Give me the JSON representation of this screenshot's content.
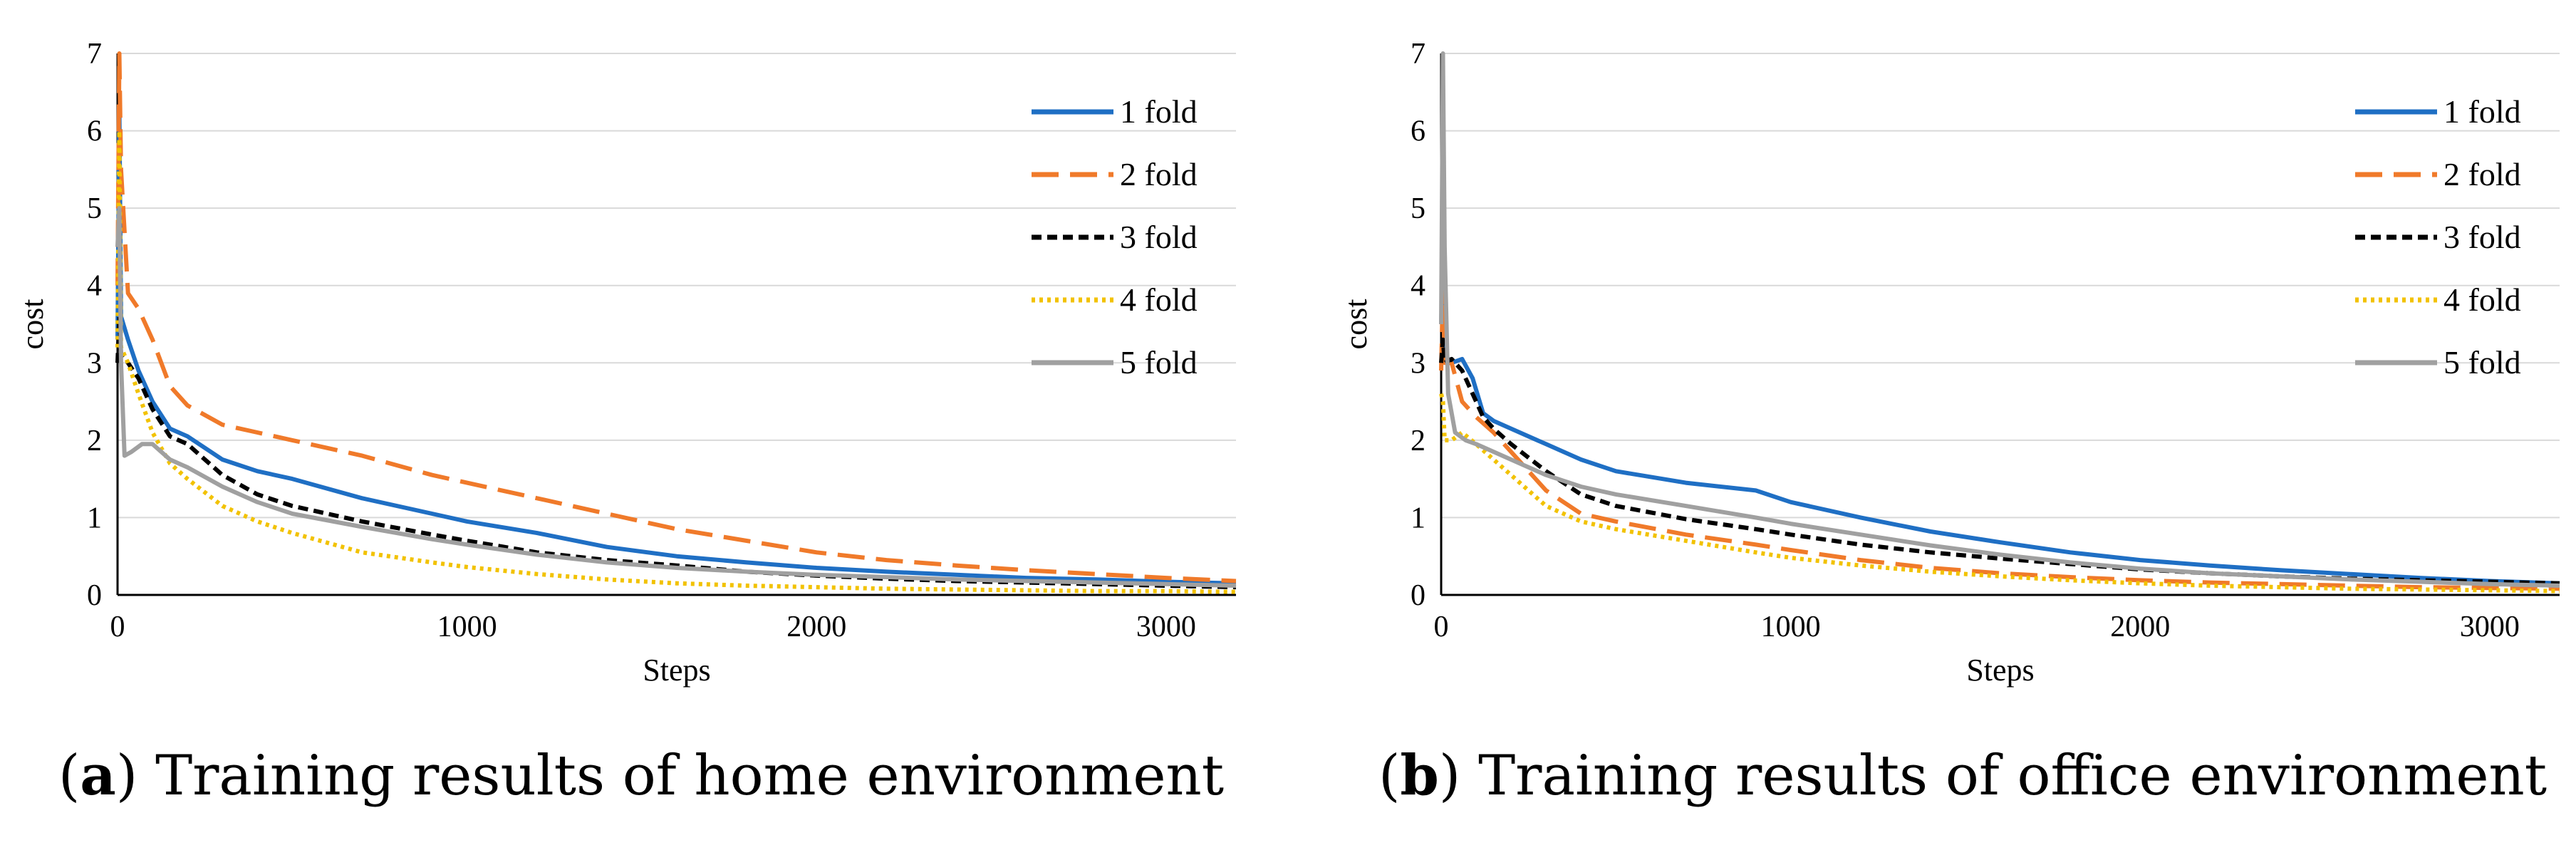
{
  "chart_data": [
    {
      "type": "line",
      "caption_label": "a",
      "caption_text": "Training results of home environment",
      "xlabel": "Steps",
      "ylabel": "cost",
      "xlim": [
        0,
        3200
      ],
      "ylim": [
        0,
        7
      ],
      "xticks": [
        0,
        1000,
        2000,
        3000
      ],
      "yticks": [
        0,
        1,
        2,
        3,
        4,
        5,
        6,
        7
      ],
      "legend_position": "top-right",
      "series": [
        {
          "name": "1 fold",
          "color": "#1f6fc4",
          "style": "solid",
          "x": [
            0,
            5,
            10,
            30,
            60,
            100,
            150,
            200,
            300,
            400,
            500,
            700,
            900,
            1000,
            1200,
            1400,
            1600,
            1800,
            2000,
            2200,
            2400,
            2600,
            2800,
            3000,
            3200
          ],
          "y": [
            3.3,
            6.3,
            3.6,
            3.3,
            2.9,
            2.5,
            2.15,
            2.05,
            1.75,
            1.6,
            1.5,
            1.25,
            1.05,
            0.95,
            0.8,
            0.62,
            0.5,
            0.42,
            0.35,
            0.3,
            0.26,
            0.22,
            0.2,
            0.17,
            0.15
          ]
        },
        {
          "name": "2 fold",
          "color": "#f07a2a",
          "style": "dash",
          "x": [
            0,
            5,
            10,
            30,
            60,
            100,
            150,
            200,
            300,
            400,
            500,
            700,
            900,
            1000,
            1200,
            1400,
            1600,
            1800,
            2000,
            2200,
            2400,
            2600,
            2800,
            3000,
            3200
          ],
          "y": [
            4.0,
            7.0,
            5.5,
            3.9,
            3.7,
            3.3,
            2.7,
            2.45,
            2.2,
            2.1,
            2.0,
            1.8,
            1.55,
            1.45,
            1.25,
            1.05,
            0.85,
            0.7,
            0.55,
            0.45,
            0.38,
            0.32,
            0.27,
            0.22,
            0.18
          ]
        },
        {
          "name": "3 fold",
          "color": "#000000",
          "style": "shortdash",
          "x": [
            0,
            5,
            10,
            30,
            60,
            100,
            150,
            200,
            300,
            400,
            500,
            700,
            900,
            1000,
            1200,
            1400,
            1600,
            1800,
            2000,
            2200,
            2400,
            2600,
            2800,
            3000,
            3200
          ],
          "y": [
            3.0,
            3.6,
            3.1,
            3.0,
            2.8,
            2.4,
            2.05,
            1.95,
            1.55,
            1.3,
            1.15,
            0.95,
            0.78,
            0.7,
            0.55,
            0.45,
            0.38,
            0.3,
            0.25,
            0.21,
            0.18,
            0.16,
            0.14,
            0.12,
            0.1
          ]
        },
        {
          "name": "4 fold",
          "color": "#f2c200",
          "style": "dot",
          "x": [
            0,
            5,
            10,
            30,
            60,
            100,
            150,
            200,
            300,
            400,
            500,
            700,
            900,
            1000,
            1200,
            1400,
            1600,
            1800,
            2000,
            2200,
            2400,
            2600,
            2800,
            3000,
            3200
          ],
          "y": [
            3.2,
            6.0,
            3.2,
            3.0,
            2.6,
            2.1,
            1.7,
            1.5,
            1.15,
            0.95,
            0.8,
            0.55,
            0.42,
            0.36,
            0.27,
            0.2,
            0.15,
            0.12,
            0.1,
            0.08,
            0.07,
            0.06,
            0.05,
            0.05,
            0.04
          ]
        },
        {
          "name": "5 fold",
          "color": "#a0a0a0",
          "style": "solid",
          "x": [
            0,
            5,
            10,
            20,
            40,
            70,
            100,
            150,
            200,
            300,
            400,
            500,
            700,
            900,
            1000,
            1200,
            1400,
            1600,
            1800,
            2000,
            2200,
            2400,
            2600,
            2800,
            3000,
            3200
          ],
          "y": [
            4.5,
            5.0,
            3.0,
            1.8,
            1.85,
            1.95,
            1.95,
            1.75,
            1.65,
            1.4,
            1.2,
            1.05,
            0.88,
            0.72,
            0.65,
            0.52,
            0.42,
            0.35,
            0.3,
            0.26,
            0.23,
            0.2,
            0.18,
            0.16,
            0.14,
            0.12
          ]
        }
      ]
    },
    {
      "type": "line",
      "caption_label": "b",
      "caption_text": "Training results of office environment",
      "xlabel": "Steps",
      "ylabel": "cost",
      "xlim": [
        0,
        3200
      ],
      "ylim": [
        0,
        7
      ],
      "xticks": [
        0,
        1000,
        2000,
        3000
      ],
      "yticks": [
        0,
        1,
        2,
        3,
        4,
        5,
        6,
        7
      ],
      "legend_position": "top-right",
      "series": [
        {
          "name": "1 fold",
          "color": "#1f6fc4",
          "style": "solid",
          "x": [
            0,
            5,
            10,
            30,
            60,
            90,
            120,
            150,
            200,
            300,
            400,
            500,
            700,
            900,
            1000,
            1200,
            1400,
            1600,
            1800,
            2000,
            2200,
            2400,
            2600,
            2800,
            3000,
            3200
          ],
          "y": [
            3.5,
            4.2,
            3.1,
            3.0,
            3.05,
            2.8,
            2.35,
            2.25,
            2.15,
            1.95,
            1.75,
            1.6,
            1.45,
            1.35,
            1.2,
            1.0,
            0.82,
            0.68,
            0.55,
            0.45,
            0.38,
            0.32,
            0.27,
            0.22,
            0.18,
            0.15
          ]
        },
        {
          "name": "2 fold",
          "color": "#f07a2a",
          "style": "dash",
          "x": [
            0,
            5,
            10,
            30,
            60,
            100,
            150,
            200,
            300,
            400,
            500,
            700,
            900,
            1000,
            1200,
            1400,
            1600,
            1800,
            2000,
            2200,
            2400,
            2600,
            2800,
            3000,
            3200
          ],
          "y": [
            2.9,
            4.0,
            3.0,
            3.0,
            2.5,
            2.3,
            2.1,
            1.85,
            1.35,
            1.05,
            0.95,
            0.78,
            0.65,
            0.58,
            0.45,
            0.35,
            0.28,
            0.23,
            0.19,
            0.16,
            0.14,
            0.12,
            0.1,
            0.09,
            0.08
          ]
        },
        {
          "name": "3 fold",
          "color": "#000000",
          "style": "shortdash",
          "x": [
            0,
            5,
            10,
            30,
            60,
            90,
            120,
            150,
            200,
            300,
            400,
            500,
            700,
            900,
            1000,
            1200,
            1400,
            1600,
            1800,
            2000,
            2200,
            2400,
            2600,
            2800,
            3000,
            3200
          ],
          "y": [
            3.0,
            3.3,
            3.0,
            3.05,
            2.9,
            2.6,
            2.3,
            2.15,
            1.95,
            1.6,
            1.3,
            1.15,
            0.98,
            0.85,
            0.78,
            0.65,
            0.55,
            0.47,
            0.4,
            0.33,
            0.28,
            0.24,
            0.21,
            0.19,
            0.17,
            0.15
          ]
        },
        {
          "name": "4 fold",
          "color": "#f2c200",
          "style": "dot",
          "x": [
            0,
            5,
            10,
            30,
            60,
            100,
            150,
            200,
            300,
            400,
            500,
            700,
            900,
            1000,
            1200,
            1400,
            1600,
            1800,
            2000,
            2200,
            2400,
            2600,
            2800,
            3000,
            3200
          ],
          "y": [
            2.6,
            2.5,
            2.0,
            2.0,
            2.1,
            1.95,
            1.75,
            1.55,
            1.15,
            0.95,
            0.85,
            0.7,
            0.55,
            0.48,
            0.38,
            0.3,
            0.24,
            0.19,
            0.15,
            0.12,
            0.1,
            0.08,
            0.07,
            0.06,
            0.05
          ]
        },
        {
          "name": "5 fold",
          "color": "#a0a0a0",
          "style": "solid",
          "x": [
            0,
            5,
            10,
            20,
            40,
            70,
            100,
            150,
            200,
            300,
            400,
            500,
            700,
            900,
            1000,
            1200,
            1400,
            1600,
            1800,
            2000,
            2200,
            2400,
            2600,
            2800,
            3000,
            3200
          ],
          "y": [
            3.5,
            7.0,
            4.5,
            2.6,
            2.1,
            2.0,
            1.95,
            1.85,
            1.75,
            1.55,
            1.4,
            1.3,
            1.15,
            1.0,
            0.92,
            0.78,
            0.64,
            0.52,
            0.42,
            0.34,
            0.28,
            0.24,
            0.2,
            0.17,
            0.14,
            0.12
          ]
        }
      ]
    }
  ]
}
